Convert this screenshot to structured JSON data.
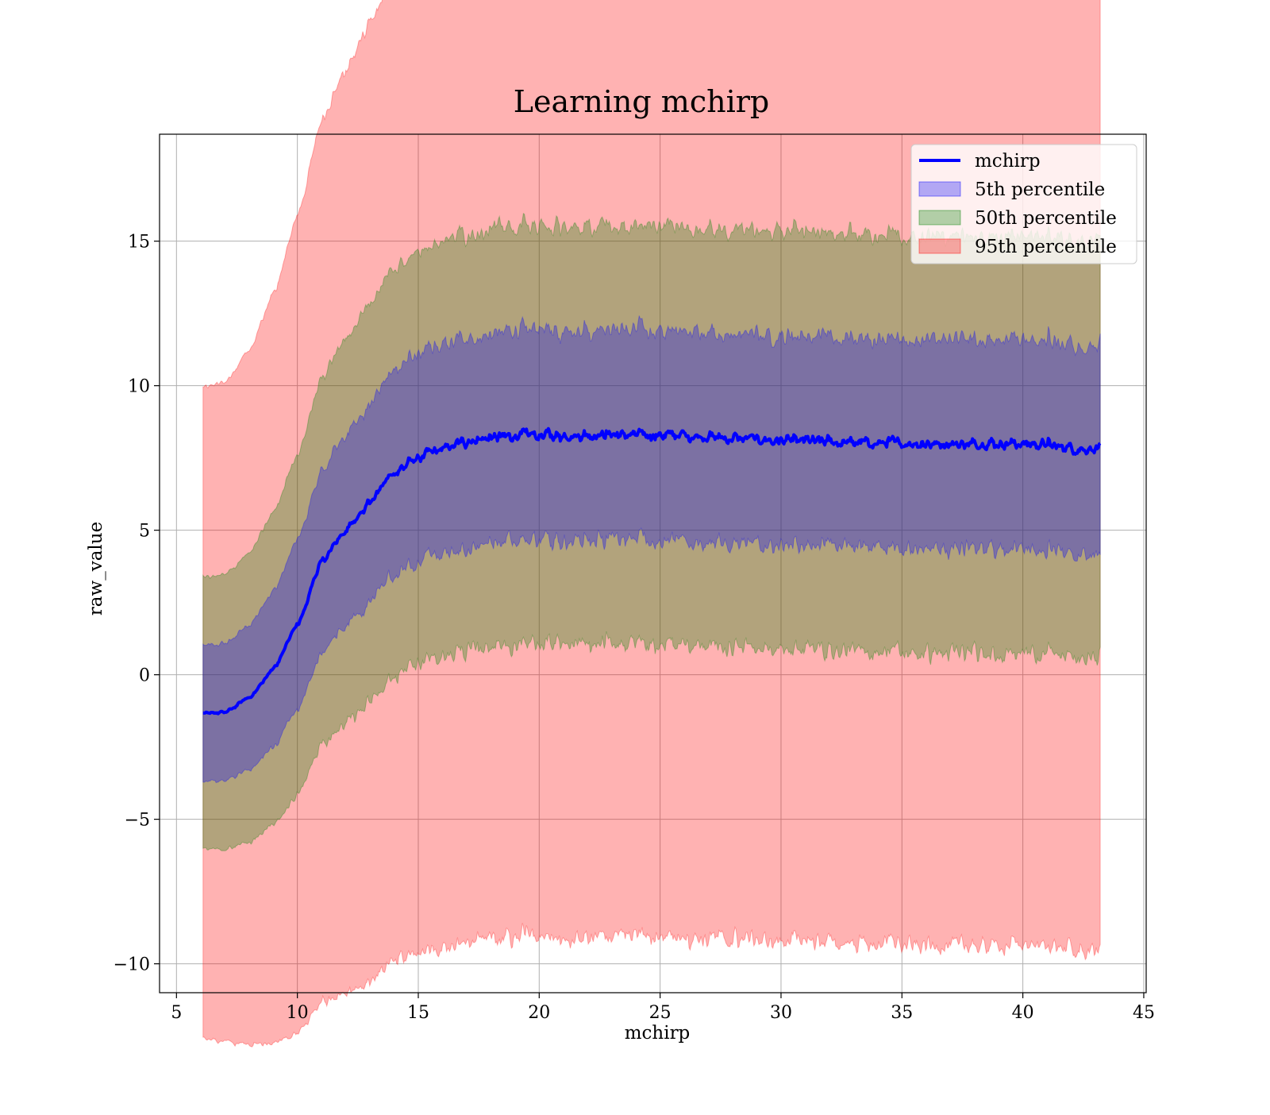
{
  "chart_data": {
    "type": "area",
    "title": "Learning mchirp",
    "xlabel": "mchirp",
    "ylabel": "raw_value",
    "xlim": [
      4.3,
      45.1
    ],
    "ylim": [
      -11.0,
      18.7
    ],
    "xticks": [
      5,
      10,
      15,
      20,
      25,
      30,
      35,
      40,
      45
    ],
    "xtick_labels": [
      "5",
      "10",
      "15",
      "20",
      "25",
      "30",
      "35",
      "40",
      "45"
    ],
    "yticks": [
      -10,
      -5,
      0,
      5,
      10,
      15
    ],
    "ytick_labels": [
      "−10",
      "−5",
      "0",
      "5",
      "10",
      "15"
    ],
    "grid": true,
    "legend_position": "upper right",
    "x_range": [
      6.1,
      43.2
    ],
    "anchors": {
      "x": [
        6.1,
        7.0,
        8.0,
        9.0,
        10.0,
        11.0,
        12.0,
        13.0,
        14.0,
        15.0,
        16.0,
        17.0,
        18.0,
        20.0,
        25.0,
        30.0,
        35.0,
        40.0,
        43.2
      ],
      "mean": [
        -1.35,
        -1.3,
        -0.8,
        0.2,
        1.7,
        3.9,
        5.0,
        6.0,
        7.0,
        7.5,
        7.8,
        8.1,
        8.2,
        8.3,
        8.3,
        8.1,
        8.0,
        8.0,
        7.8
      ],
      "std": [
        4.7,
        4.75,
        5.0,
        5.4,
        5.9,
        6.35,
        6.65,
        6.9,
        7.05,
        7.15,
        7.2,
        7.22,
        7.22,
        7.22,
        7.22,
        7.22,
        7.22,
        7.22,
        7.22
      ]
    },
    "noise": {
      "mean_amplitude": 0.2,
      "band_amplitude": 0.32,
      "noise_start_x": 8.0,
      "noise_full_x": 15.0
    },
    "series": [
      {
        "name": "mchirp",
        "kind": "line",
        "color": "#0000ff"
      },
      {
        "name": "5th percentile",
        "kind": "band",
        "sigma": 0.5,
        "color": "#0000ff",
        "opacity": 0.3
      },
      {
        "name": "50th percentile",
        "kind": "band",
        "sigma": 1.0,
        "color": "#008000",
        "opacity": 0.3
      },
      {
        "name": "95th percentile",
        "kind": "band",
        "sigma": 2.4,
        "color": "#ff0000",
        "opacity": 0.3
      }
    ]
  }
}
